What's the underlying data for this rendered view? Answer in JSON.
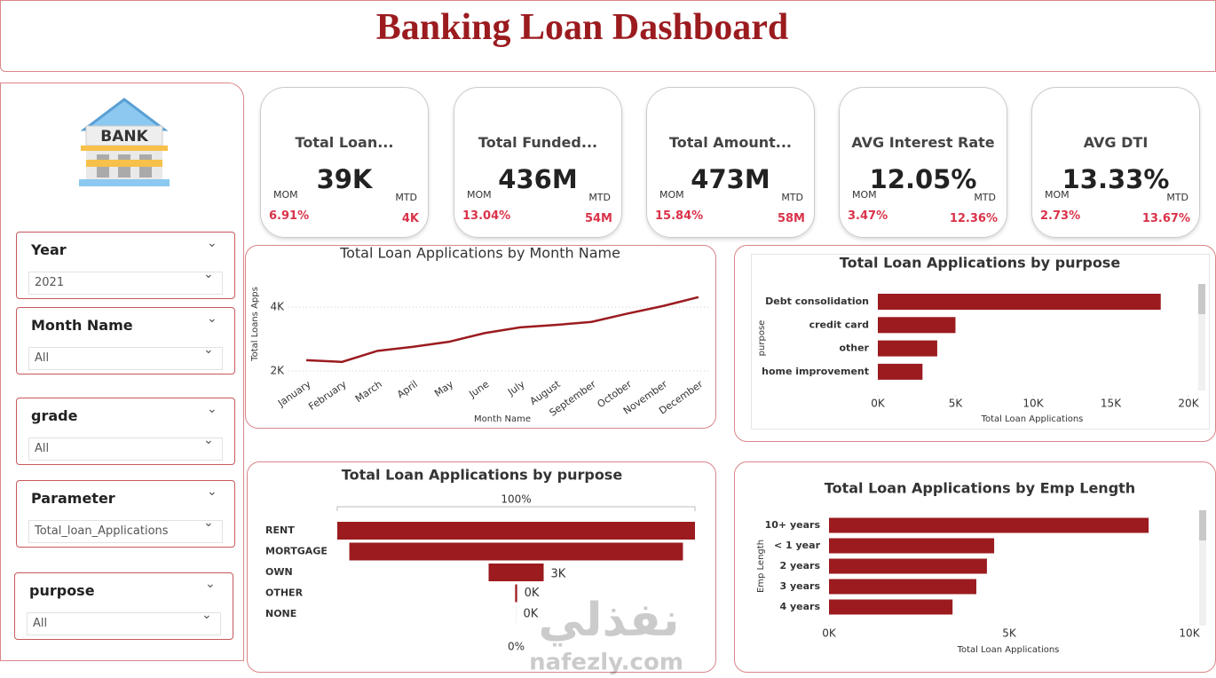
{
  "header": {
    "title": "Banking Loan Dashboard"
  },
  "sidebar": {
    "icon_label": "BANK",
    "slicers": [
      {
        "label": "Year",
        "value": "2021"
      },
      {
        "label": "Month Name",
        "value": "All"
      },
      {
        "label": "grade",
        "value": "All"
      },
      {
        "label": "Parameter",
        "value": "Total_loan_Applications"
      },
      {
        "label": "purpose",
        "value": "All"
      }
    ]
  },
  "kpis": [
    {
      "title": "Total Loan...",
      "value": "39K",
      "mom_label": "MOM",
      "mom": "6.91%",
      "mtd_label": "MTD",
      "mtd": "4K"
    },
    {
      "title": "Total Funded...",
      "value": "436M",
      "mom_label": "MOM",
      "mom": "13.04%",
      "mtd_label": "MTD",
      "mtd": "54M"
    },
    {
      "title": "Total Amount...",
      "value": "473M",
      "mom_label": "MOM",
      "mom": "15.84%",
      "mtd_label": "MTD",
      "mtd": "58M"
    },
    {
      "title": "AVG Interest Rate",
      "value": "12.05%",
      "mom_label": "MOM",
      "mom": "3.47%",
      "mtd_label": "MTD",
      "mtd": "12.36%"
    },
    {
      "title": "AVG DTI",
      "value": "13.33%",
      "mom_label": "MOM",
      "mom": "2.73%",
      "mtd_label": "MTD",
      "mtd": "13.67%"
    }
  ],
  "chart_data": [
    {
      "type": "line",
      "title": "Total Loan Applications by Month Name",
      "x_label": "Month Name",
      "y_label": "Total Loans Apps",
      "categories": [
        "January",
        "February",
        "March",
        "April",
        "May",
        "June",
        "July",
        "August",
        "September",
        "October",
        "November",
        "December"
      ],
      "values": [
        2332,
        2279,
        2627,
        2755,
        2911,
        3184,
        3366,
        3441,
        3536,
        3796,
        4035,
        4314
      ],
      "color": "#9b1b1f",
      "ylim": [
        1800,
        4700
      ],
      "yticks": [
        {
          "value": 2000,
          "label": "2K"
        },
        {
          "value": 4000,
          "label": "4K"
        }
      ],
      "grid": true
    },
    {
      "type": "hbar",
      "title": "Total Loan Applications by purpose",
      "x_label": "Total Loan Applications",
      "y_label": "purpose",
      "categories": [
        "Debt consolidation",
        "credit card",
        "other",
        "home improvement"
      ],
      "values": [
        18214,
        4998,
        3824,
        2876
      ],
      "color": "#9b1b1f",
      "xlim": [
        0,
        20000
      ],
      "xticks": [
        {
          "value": 0,
          "label": "0K"
        },
        {
          "value": 5000,
          "label": "5K"
        },
        {
          "value": 10000,
          "label": "10K"
        },
        {
          "value": 15000,
          "label": "15K"
        },
        {
          "value": 20000,
          "label": "20K"
        }
      ]
    },
    {
      "type": "funnel",
      "title": "Total Loan Applications by purpose",
      "top_label": "100%",
      "bottom_label": "0%",
      "categories": [
        "RENT",
        "MORTGAGE",
        "OWN",
        "OTHER",
        "NONE"
      ],
      "values": [
        18439,
        17198,
        2838,
        104,
        3
      ],
      "value_labels": [
        null,
        null,
        "3K",
        "0K",
        "0K"
      ],
      "color": "#9b1b1f"
    },
    {
      "type": "hbar",
      "title": "Total Loan Applications by Emp Length",
      "x_label": "Total Loan Applications",
      "y_label": "Emp Length",
      "categories": [
        "10+ years",
        "< 1 year",
        "2 years",
        "3 years",
        "4 years"
      ],
      "values": [
        8870,
        4583,
        4382,
        4088,
        3428
      ],
      "color": "#9b1b1f",
      "xlim": [
        0,
        10000
      ],
      "xticks": [
        {
          "value": 0,
          "label": "0K"
        },
        {
          "value": 5000,
          "label": "5K"
        },
        {
          "value": 10000,
          "label": "10K"
        }
      ]
    }
  ],
  "watermark": {
    "arabic": "نفذلي",
    "latin": "nafezly.com"
  }
}
